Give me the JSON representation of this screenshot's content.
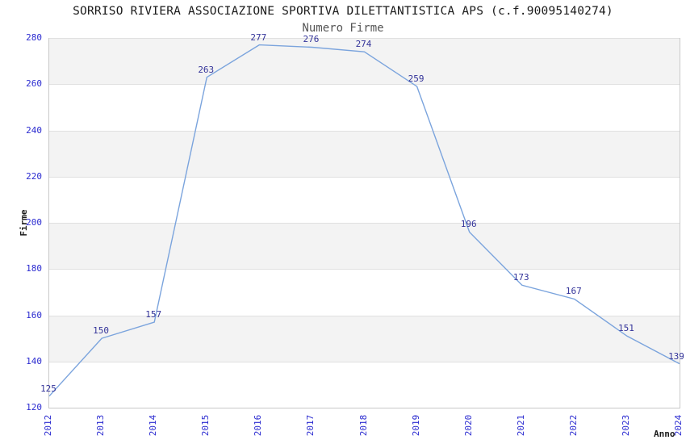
{
  "header": {
    "title": "SORRISO RIVIERA ASSOCIAZIONE SPORTIVA DILETTANTISTICA APS (c.f.90095140274)",
    "subtitle": "Numero Firme"
  },
  "chart_data": {
    "type": "line",
    "title": "Numero Firme",
    "xlabel": "Anno",
    "ylabel": "Firme",
    "categories": [
      "2012",
      "2013",
      "2014",
      "2015",
      "2016",
      "2017",
      "2018",
      "2019",
      "2020",
      "2021",
      "2022",
      "2023",
      "2024"
    ],
    "values": [
      125,
      150,
      157,
      263,
      277,
      276,
      274,
      259,
      196,
      173,
      167,
      151,
      139
    ],
    "ylim": [
      120,
      280
    ],
    "ytick_step": 20,
    "yticks": [
      120,
      140,
      160,
      180,
      200,
      220,
      240,
      260,
      280
    ],
    "grid": "horizontal",
    "legend": "none",
    "data_labels_shown": true,
    "colors": {
      "line": "#7ba4dd",
      "tick_label": "#2b2bd0",
      "data_label": "#333399",
      "band": "#f3f3f3",
      "gridline": "#e0e0e0",
      "border": "#c9c9c9",
      "title": "#1a1a1a",
      "subtitle": "#555555",
      "axis_title": "#1a1a1a"
    }
  }
}
